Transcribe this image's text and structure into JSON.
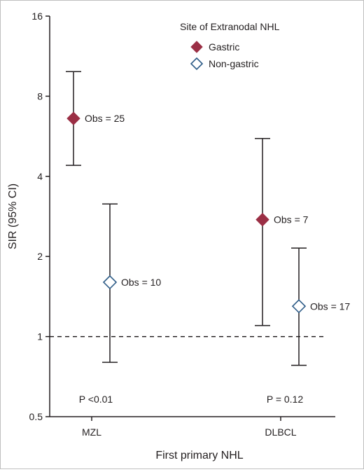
{
  "chart_data": {
    "type": "scatter",
    "subtype": "point-with-error-bars",
    "xlabel": "First primary NHL",
    "ylabel": "SIR (95% CI)",
    "y_scale": "log2",
    "ylim": [
      0.5,
      16
    ],
    "y_ticks": [
      0.5,
      1,
      2,
      4,
      8,
      16
    ],
    "y_tick_labels": [
      "0.5",
      "1",
      "2",
      "4",
      "8",
      "16"
    ],
    "categories": [
      "MZL",
      "DLBCL"
    ],
    "reference_line": {
      "y": 1,
      "style": "dashed"
    },
    "legend": {
      "title": "Site of Extranodal NHL",
      "placement": "top-right",
      "entries": [
        {
          "name": "Gastric",
          "marker": "filled-diamond",
          "color": "#9b2f45"
        },
        {
          "name": "Non-gastric",
          "marker": "open-diamond",
          "color": "#2e5c87"
        }
      ]
    },
    "series": [
      {
        "name": "Gastric",
        "color": "#9b2f45",
        "points": [
          {
            "category": "MZL",
            "sir": 6.6,
            "ci_low": 4.4,
            "ci_high": 9.9,
            "label": "Obs = 25"
          },
          {
            "category": "DLBCL",
            "sir": 2.75,
            "ci_low": 1.1,
            "ci_high": 5.55,
            "label": "Obs = 7"
          }
        ]
      },
      {
        "name": "Non-gastric",
        "color": "#2e5c87",
        "points": [
          {
            "category": "MZL",
            "sir": 1.6,
            "ci_low": 0.8,
            "ci_high": 3.15,
            "label": "Obs = 10"
          },
          {
            "category": "DLBCL",
            "sir": 1.3,
            "ci_low": 0.78,
            "ci_high": 2.15,
            "label": "Obs = 17"
          }
        ]
      }
    ],
    "p_values": [
      {
        "category": "MZL",
        "text": "P <0.01"
      },
      {
        "category": "DLBCL",
        "text": "P = 0.12"
      }
    ]
  }
}
